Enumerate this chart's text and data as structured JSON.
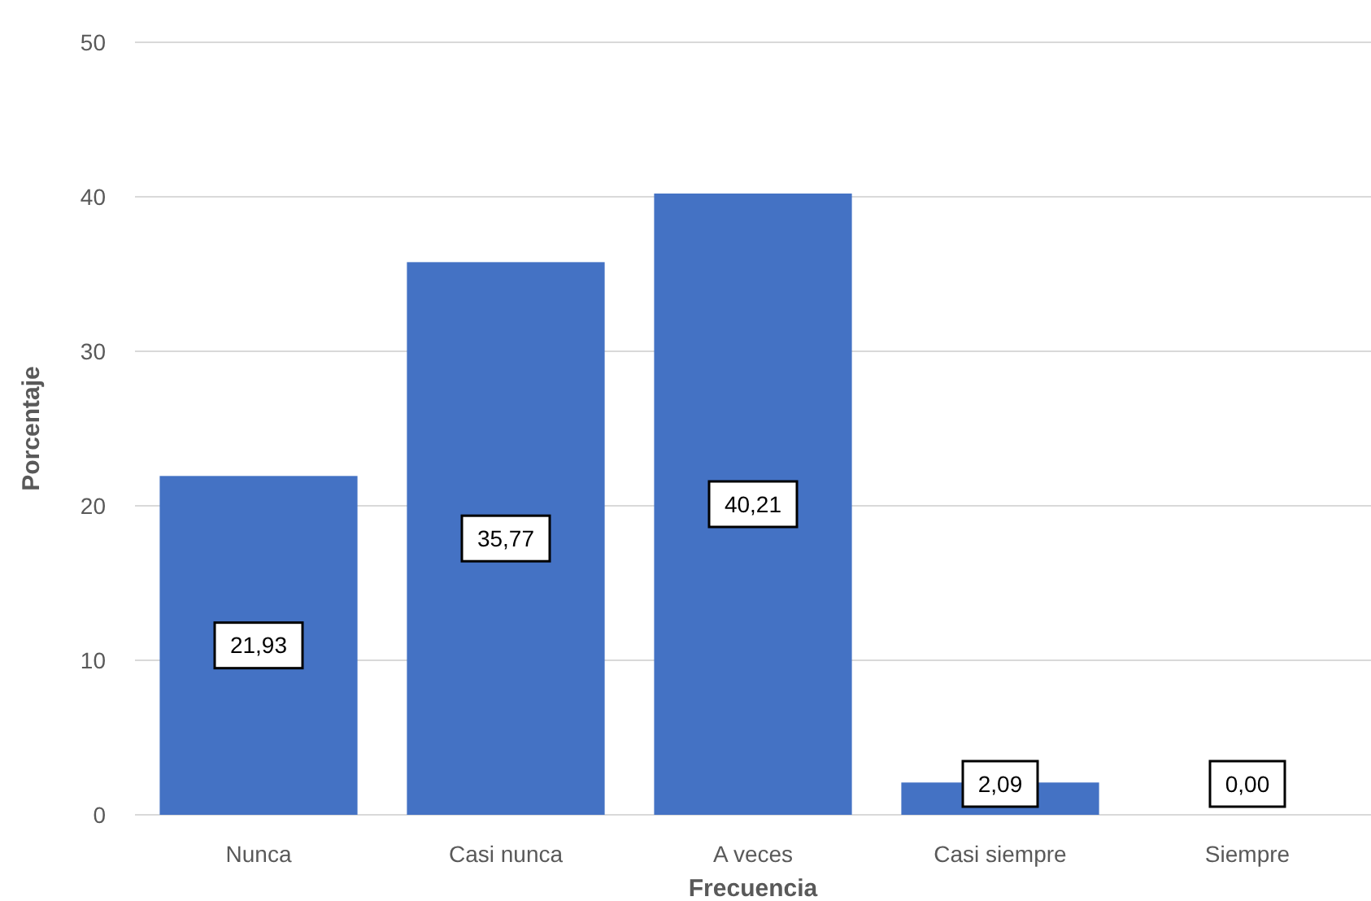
{
  "chart_data": {
    "type": "bar",
    "xlabel": "Frecuencia",
    "ylabel": "Porcentaje",
    "categories": [
      "Nunca",
      "Casi nunca",
      "A veces",
      "Casi siempre",
      "Siempre"
    ],
    "values": [
      21.93,
      35.77,
      40.21,
      2.09,
      0
    ],
    "value_labels": [
      "21,93",
      "35,77",
      "40,21",
      "2,09",
      "0,00"
    ],
    "color": "#4472c4",
    "ylim": [
      0,
      50
    ],
    "yticks": [
      0,
      10,
      20,
      30,
      40,
      50
    ],
    "grid": "y"
  }
}
